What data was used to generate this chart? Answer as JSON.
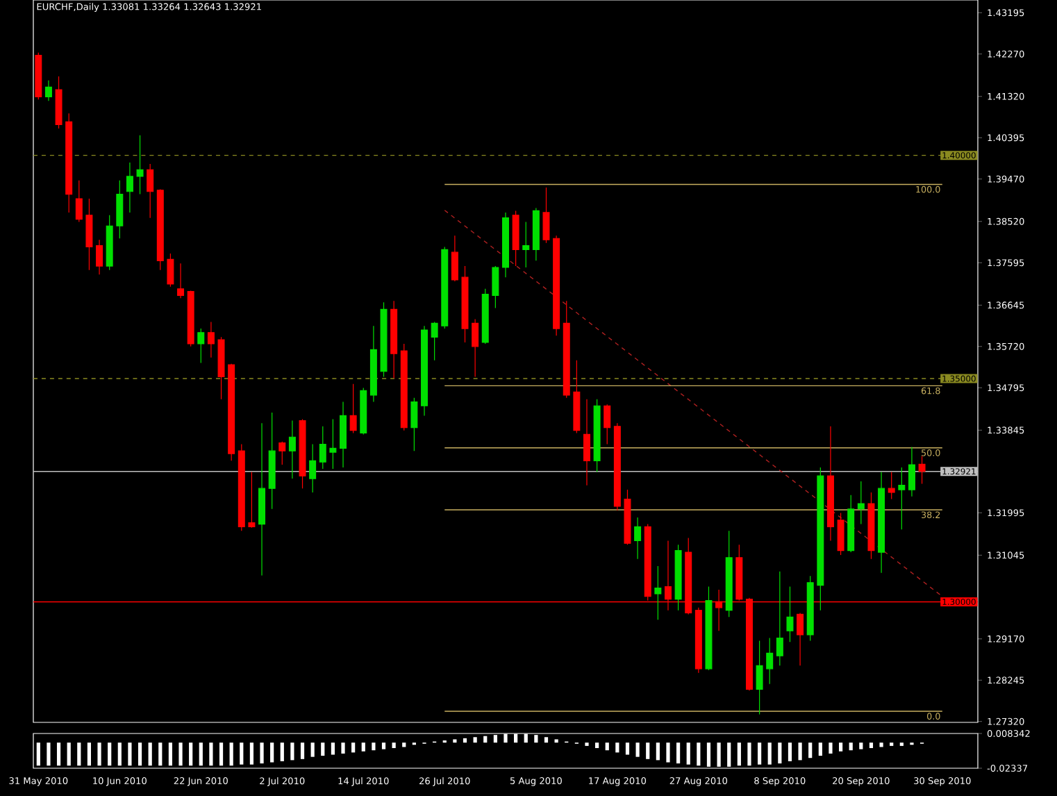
{
  "chart_data": [
    {
      "type": "candlestick",
      "title": "EURCHF,Daily  1.33081 1.33264 1.32643 1.32921",
      "categories": [
        "31 May 2010",
        null,
        null,
        null,
        null,
        null,
        null,
        null,
        "10 Jun 2010",
        null,
        null,
        null,
        null,
        null,
        null,
        null,
        "22 Jun 2010",
        null,
        null,
        null,
        null,
        null,
        null,
        null,
        "2 Jul 2010",
        null,
        null,
        null,
        null,
        null,
        null,
        null,
        "14 Jul 2010",
        null,
        null,
        null,
        null,
        null,
        null,
        null,
        "26 Jul 2010",
        null,
        null,
        null,
        null,
        null,
        null,
        null,
        null,
        "5 Aug 2010",
        null,
        null,
        null,
        null,
        null,
        null,
        null,
        "17 Aug 2010",
        null,
        null,
        null,
        null,
        null,
        null,
        null,
        "27 Aug 2010",
        null,
        null,
        null,
        null,
        null,
        null,
        null,
        "8 Sep 2010",
        null,
        null,
        null,
        null,
        null,
        null,
        null,
        "20 Sep 2010",
        null,
        null,
        null,
        null,
        null,
        null,
        null,
        "30 Sep 2010",
        null,
        null,
        null
      ],
      "ohlc": [
        [
          1.4224,
          1.423,
          1.4125,
          1.4131
        ],
        [
          1.4131,
          1.4168,
          1.4122,
          1.4153
        ],
        [
          1.4147,
          1.4177,
          1.406,
          1.4069
        ],
        [
          1.4075,
          1.4094,
          1.3872,
          1.3913
        ],
        [
          1.3903,
          1.3944,
          1.3851,
          1.3857
        ],
        [
          1.3866,
          1.3903,
          1.3743,
          1.3795
        ],
        [
          1.3798,
          1.3811,
          1.3733,
          1.3752
        ],
        [
          1.3752,
          1.3866,
          1.3743,
          1.3842
        ],
        [
          1.3842,
          1.3944,
          1.3814,
          1.3913
        ],
        [
          1.3919,
          1.3984,
          1.3872,
          1.3953
        ],
        [
          1.3953,
          1.4045,
          1.3913,
          1.3968
        ],
        [
          1.3968,
          1.3981,
          1.386,
          1.3919
        ],
        [
          1.3922,
          1.3924,
          1.3743,
          1.3764
        ],
        [
          1.3767,
          1.378,
          1.3706,
          1.3712
        ],
        [
          1.3701,
          1.3758,
          1.368,
          1.3686
        ],
        [
          1.3695,
          1.3697,
          1.3572,
          1.3578
        ],
        [
          1.3578,
          1.3612,
          1.3535,
          1.3603
        ],
        [
          1.3603,
          1.3627,
          1.3547,
          1.3578
        ],
        [
          1.3587,
          1.3593,
          1.3454,
          1.3504
        ],
        [
          1.3531,
          1.3533,
          1.3316,
          1.3332
        ],
        [
          1.3338,
          1.3353,
          1.3159,
          1.3168
        ],
        [
          1.3177,
          1.3291,
          1.3166,
          1.3168
        ],
        [
          1.3174,
          1.34,
          1.3059,
          1.3254
        ],
        [
          1.3254,
          1.3424,
          1.3208,
          1.3338
        ],
        [
          1.3356,
          1.3359,
          1.3307,
          1.3338
        ],
        [
          1.3338,
          1.3406,
          1.3276,
          1.3369
        ],
        [
          1.3406,
          1.3409,
          1.3254,
          1.3282
        ],
        [
          1.3276,
          1.3353,
          1.3245,
          1.3316
        ],
        [
          1.3313,
          1.3393,
          1.3298,
          1.3353
        ],
        [
          1.3335,
          1.3409,
          1.3298,
          1.3344
        ],
        [
          1.3344,
          1.3448,
          1.3301,
          1.3417
        ],
        [
          1.3417,
          1.3488,
          1.3378,
          1.3384
        ],
        [
          1.3378,
          1.3479,
          1.3375,
          1.3473
        ],
        [
          1.3463,
          1.3618,
          1.3448,
          1.3565
        ],
        [
          1.3516,
          1.3671,
          1.3504,
          1.3655
        ],
        [
          1.3655,
          1.3674,
          1.3501,
          1.3556
        ],
        [
          1.3562,
          1.3578,
          1.3384,
          1.339
        ],
        [
          1.339,
          1.3457,
          1.3338,
          1.3448
        ],
        [
          1.3439,
          1.3618,
          1.3417,
          1.3609
        ],
        [
          1.3593,
          1.3627,
          1.3541,
          1.3624
        ],
        [
          1.3618,
          1.3795,
          1.3612,
          1.3789
        ],
        [
          1.3783,
          1.382,
          1.3718,
          1.3721
        ],
        [
          1.3727,
          1.3752,
          1.3581,
          1.3612
        ],
        [
          1.3624,
          1.3633,
          1.3504,
          1.3572
        ],
        [
          1.3581,
          1.3701,
          1.3578,
          1.3689
        ],
        [
          1.3686,
          1.3752,
          1.3658,
          1.3749
        ],
        [
          1.3749,
          1.3872,
          1.3727,
          1.386
        ],
        [
          1.3866,
          1.3876,
          1.3752,
          1.3789
        ],
        [
          1.3789,
          1.3851,
          1.3749,
          1.3798
        ],
        [
          1.3789,
          1.3882,
          1.3764,
          1.3876
        ],
        [
          1.3872,
          1.3928,
          1.3804,
          1.3811
        ],
        [
          1.3814,
          1.382,
          1.3596,
          1.3612
        ],
        [
          1.3624,
          1.3674,
          1.3457,
          1.3463
        ],
        [
          1.347,
          1.3541,
          1.3378,
          1.3384
        ],
        [
          1.3375,
          1.3454,
          1.3261,
          1.3316
        ],
        [
          1.3316,
          1.3454,
          1.3291,
          1.3439
        ],
        [
          1.3439,
          1.3442,
          1.3353,
          1.339
        ],
        [
          1.3393,
          1.34,
          1.3205,
          1.3214
        ],
        [
          1.323,
          1.3251,
          1.3128,
          1.3131
        ],
        [
          1.3137,
          1.3189,
          1.3096,
          1.3168
        ],
        [
          1.3168,
          1.3174,
          1.3003,
          1.3012
        ],
        [
          1.3018,
          1.308,
          1.296,
          1.3031
        ],
        [
          1.3034,
          1.3137,
          1.2981,
          1.3006
        ],
        [
          1.3006,
          1.3128,
          1.2981,
          1.3115
        ],
        [
          1.3111,
          1.3143,
          1.2972,
          1.2975
        ],
        [
          1.2981,
          1.2987,
          1.2841,
          1.285
        ],
        [
          1.285,
          1.3034,
          1.2847,
          1.3003
        ],
        [
          1.3,
          1.3027,
          1.2935,
          1.2987
        ],
        [
          1.2981,
          1.3159,
          1.2966,
          1.3099
        ],
        [
          1.3099,
          1.3128,
          1.3003,
          1.3006
        ],
        [
          1.3006,
          1.3009,
          1.2801,
          1.2804
        ],
        [
          1.2804,
          1.2913,
          1.2748,
          1.2857
        ],
        [
          1.285,
          1.2919,
          1.2816,
          1.2885
        ],
        [
          1.2879,
          1.3068,
          1.2857,
          1.2919
        ],
        [
          1.2935,
          1.3034,
          1.291,
          1.2966
        ],
        [
          1.2972,
          1.2975,
          1.2857,
          1.2926
        ],
        [
          1.2926,
          1.3058,
          1.2913,
          1.3043
        ],
        [
          1.3037,
          1.3301,
          1.2981,
          1.3282
        ],
        [
          1.3282,
          1.3393,
          1.3137,
          1.3168
        ],
        [
          1.3183,
          1.3199,
          1.3105,
          1.3115
        ],
        [
          1.3115,
          1.3239,
          1.3111,
          1.3208
        ],
        [
          1.3208,
          1.327,
          1.3174,
          1.322
        ],
        [
          1.322,
          1.3245,
          1.3096,
          1.3115
        ],
        [
          1.3111,
          1.3291,
          1.3065,
          1.3254
        ],
        [
          1.3254,
          1.3291,
          1.323,
          1.3245
        ],
        [
          1.3251,
          1.3301,
          1.3162,
          1.3261
        ],
        [
          1.3251,
          1.3347,
          1.3236,
          1.3307
        ],
        [
          1.33081,
          1.33264,
          1.32643,
          1.32921
        ],
        null,
        null,
        null,
        null,
        null
      ],
      "colors": [
        "#ff0000",
        "#00e000",
        "#ff0000",
        "#ff0000",
        "#ff0000",
        "#ff0000",
        "#ff0000",
        "#00e000",
        "#00e000",
        "#00e000",
        "#00e000",
        "#ff0000",
        "#ff0000",
        "#ff0000",
        "#ff0000",
        "#ff0000",
        "#00e000",
        "#ff0000",
        "#ff0000",
        "#ff0000",
        "#ff0000",
        "#ff0000",
        "#00e000",
        "#00e000",
        "#ff0000",
        "#00e000",
        "#ff0000",
        "#00e000",
        "#00e000",
        "#00e000",
        "#00e000",
        "#ff0000",
        "#00e000",
        "#00e000",
        "#00e000",
        "#ff0000",
        "#ff0000",
        "#00e000",
        "#00e000",
        "#00e000",
        "#00e000",
        "#ff0000",
        "#ff0000",
        "#ff0000",
        "#00e000",
        "#00e000",
        "#00e000",
        "#ff0000",
        "#00e000",
        "#00e000",
        "#ff0000",
        "#ff0000",
        "#ff0000",
        "#ff0000",
        "#ff0000",
        "#00e000",
        "#ff0000",
        "#ff0000",
        "#ff0000",
        "#00e000",
        "#ff0000",
        "#00e000",
        "#ff0000",
        "#00e000",
        "#ff0000",
        "#ff0000",
        "#00e000",
        "#ff0000",
        "#00e000",
        "#ff0000",
        "#ff0000",
        "#00e000",
        "#00e000",
        "#00e000",
        "#00e000",
        "#ff0000",
        "#00e000",
        "#00e000",
        "#ff0000",
        "#ff0000",
        "#00e000",
        "#00e000",
        "#ff0000",
        "#00e000",
        "#ff0000",
        "#00e000",
        "#00e000",
        "#ff0000",
        null,
        null,
        null,
        null,
        null
      ],
      "series": [
        {
          "type": "line",
          "x": [
            "26 Jul 2010",
            "30 Sep 2010"
          ],
          "values": [
            1.3877,
            1.3012
          ],
          "color": "#b02020",
          "line_style": "dashed"
        },
        {
          "type": "line",
          "name": "100.0",
          "x": [
            "26 Jul 2010",
            "30 Sep 2010"
          ],
          "values": [
            1.3935,
            1.3935
          ],
          "color": "#c8b060"
        },
        {
          "type": "line",
          "name": "61.8",
          "x": [
            "26 Jul 2010",
            "30 Sep 2010"
          ],
          "values": [
            1.3484,
            1.3484
          ],
          "color": "#c8b060"
        },
        {
          "type": "line",
          "name": "50.0",
          "x": [
            "26 Jul 2010",
            "30 Sep 2010"
          ],
          "values": [
            1.3345,
            1.3345
          ],
          "color": "#c8b060"
        },
        {
          "type": "line",
          "name": "38.2",
          "x": [
            "26 Jul 2010",
            "30 Sep 2010"
          ],
          "values": [
            1.3206,
            1.3206
          ],
          "color": "#c8b060"
        },
        {
          "type": "line",
          "name": "0.0",
          "x": [
            "26 Jul 2010",
            "30 Sep 2010"
          ],
          "values": [
            1.2755,
            1.2755
          ],
          "color": "#c8b060"
        }
      ],
      "ref_lines": [
        {
          "axis": "y",
          "value": 1.4,
          "label": "1.40000",
          "color": "#8a8a20",
          "line_style": "dashed"
        },
        {
          "axis": "y",
          "value": 1.35,
          "label": "1.35000",
          "color": "#8a8a20",
          "line_style": "dashed"
        },
        {
          "axis": "y",
          "value": 1.32921,
          "label": "1.32921",
          "color": "#c0c0c0",
          "line_style": "solid"
        },
        {
          "axis": "y",
          "value": 1.3,
          "label": "1.30000",
          "color": "#ff0000",
          "line_style": "solid"
        }
      ],
      "ylim": [
        1.273,
        1.4348
      ],
      "yticks": [
        1.43195,
        {
          "value": 1.4227,
          "label": "1.42270"
        },
        {
          "value": 1.4132,
          "label": "1.41320"
        },
        1.40395,
        {
          "value": 1.3947,
          "label": "1.39470"
        },
        {
          "value": 1.3852,
          "label": "1.38520"
        },
        1.37595,
        1.36645,
        {
          "value": 1.3572,
          "label": "1.35720"
        },
        1.34795,
        1.33845,
        1.31995,
        1.31045,
        {
          "value": 1.2917,
          "label": "1.29170"
        },
        1.28245,
        {
          "value": 1.2732,
          "label": "1.27320"
        }
      ]
    },
    {
      "type": "bar",
      "tick_labels": "y",
      "categories": [
        null,
        null,
        null,
        null,
        null,
        null,
        null,
        null,
        null,
        null,
        null,
        null,
        null,
        null,
        null,
        null,
        null,
        null,
        null,
        null,
        null,
        null,
        null,
        null,
        null,
        null,
        null,
        null,
        null,
        null,
        null,
        null,
        null,
        null,
        null,
        null,
        null,
        null,
        null,
        null,
        null,
        null,
        null,
        null,
        null,
        null,
        null,
        null,
        null,
        null,
        null,
        null,
        null,
        null,
        null,
        null,
        null,
        null,
        null,
        null,
        null,
        null,
        null,
        null,
        null,
        null,
        null,
        null,
        null,
        null,
        null,
        null,
        null,
        null,
        null,
        null,
        null,
        null,
        null,
        null,
        null,
        null,
        null,
        null,
        null,
        null,
        null,
        null,
        null,
        null,
        null,
        null,
        null
      ],
      "values": [
        -0.021,
        -0.021,
        -0.021,
        -0.021,
        -0.021,
        -0.021,
        -0.021,
        -0.021,
        -0.021,
        -0.021,
        -0.021,
        -0.021,
        -0.021,
        -0.021,
        -0.021,
        -0.021,
        -0.021,
        -0.021,
        -0.021,
        -0.021,
        -0.02,
        -0.02,
        -0.019,
        -0.018,
        -0.017,
        -0.016,
        -0.015,
        -0.013,
        -0.012,
        -0.011,
        -0.01,
        -0.009,
        -0.008,
        -0.007,
        -0.006,
        -0.005,
        -0.004,
        -0.002,
        -0.001,
        0.001,
        0.002,
        0.003,
        0.004,
        0.005,
        0.006,
        0.007,
        0.008,
        0.008,
        0.008,
        0.007,
        0.005,
        0.003,
        0.001,
        -0.001,
        -0.003,
        -0.005,
        -0.007,
        -0.009,
        -0.011,
        -0.013,
        -0.015,
        -0.016,
        -0.018,
        -0.019,
        -0.02,
        -0.021,
        -0.022,
        -0.022,
        -0.022,
        -0.021,
        -0.021,
        -0.02,
        -0.02,
        -0.019,
        -0.017,
        -0.016,
        -0.014,
        -0.012,
        -0.01,
        -0.008,
        -0.007,
        -0.006,
        -0.005,
        -0.004,
        -0.003,
        -0.003,
        -0.002,
        -0.001,
        null,
        null,
        null,
        null,
        null
      ],
      "color": "#ffffff",
      "ylim": [
        -0.02337,
        0.008342
      ],
      "yticks": [
        {
          "value": 0.008342,
          "label": "0.008342"
        },
        {
          "value": -0.02337,
          "label": "-0.02337"
        }
      ]
    }
  ]
}
